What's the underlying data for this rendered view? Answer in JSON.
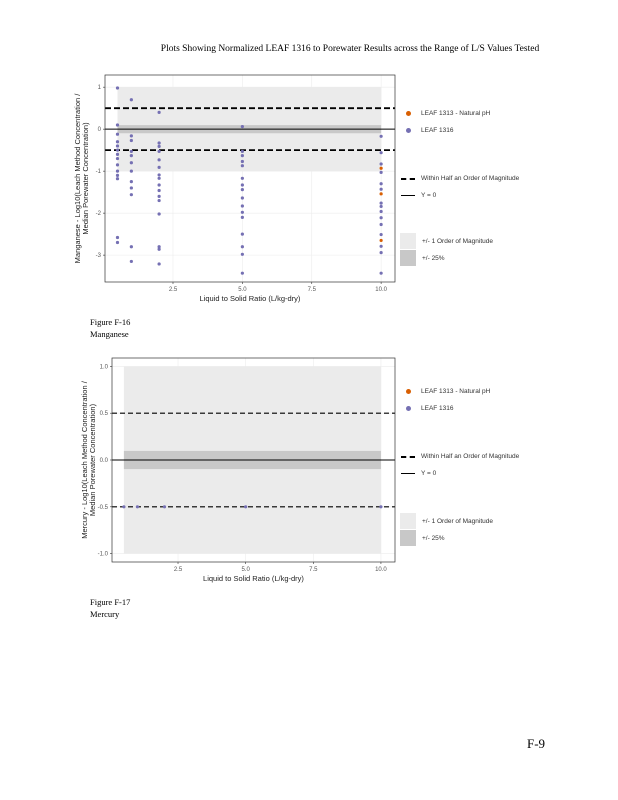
{
  "page_title": "Plots Showing Normalized LEAF 1316 to Porewater Results across the Range of L/S Values Tested",
  "page_number": "F-9",
  "legend": {
    "natural_ph": "LEAF 1313 - Natural pH",
    "leaf1316": "LEAF 1316",
    "half_order": "Within Half an Order of Magnitude",
    "y0": "Y = 0",
    "one_order": "+/- 1 Order of Magnitude",
    "pct25": "+/- 25%"
  },
  "colors": {
    "leaf1316": "#7570b3",
    "natural_ph": "#d95f02",
    "band_outer": "#ebebeb",
    "band_inner": "#c8c8c8"
  },
  "figures": [
    {
      "label": "Figure F-16",
      "caption": "Manganese"
    },
    {
      "label": "Figure F-17",
      "caption": "Mercury"
    }
  ],
  "chart_data": [
    {
      "type": "scatter",
      "xlabel": "Liquid to Solid Ratio (L/kg-dry)",
      "ylabel_line1": "Manganese - Log10(Leach Method Concentration /",
      "ylabel_line2": "Median Porewater Concentration)",
      "xlim": [
        0.05,
        10.5
      ],
      "ylim": [
        -3.64,
        1.29
      ],
      "xticks": [
        2.5,
        5.0,
        7.5,
        10.0
      ],
      "xtick_labels": [
        "2.5",
        "5.0",
        "7.5",
        "10.0"
      ],
      "yticks": [
        1,
        0,
        -1,
        -2,
        -3
      ],
      "ytick_labels": [
        "1",
        "0",
        "-1",
        "-2",
        "-3"
      ],
      "bands": {
        "outer": 1,
        "inner": 0.097,
        "x_range": [
          0.5,
          10
        ]
      },
      "dashed_lines": [
        0.5,
        -0.5
      ],
      "dashed_heavy": true,
      "series": [
        {
          "name": "LEAF 1316",
          "x": [
            0.5,
            0.5,
            0.5,
            0.5,
            0.5,
            0.5,
            0.5,
            0.5,
            0.5,
            0.5,
            0.5,
            0.5,
            0.5,
            0.5,
            1,
            1,
            1,
            1,
            1,
            1,
            1,
            1,
            1,
            1,
            1,
            1,
            2,
            2,
            2,
            2,
            2,
            2,
            2,
            2,
            2,
            2,
            2,
            2,
            2,
            2,
            2,
            2,
            5,
            5,
            5,
            5,
            5,
            5,
            5,
            5,
            5,
            5,
            5,
            5,
            5,
            5,
            5,
            5,
            10,
            10,
            10,
            10,
            10,
            10,
            10,
            10,
            10,
            10,
            10,
            10,
            10,
            10,
            10
          ],
          "y": [
            0.98,
            0.1,
            -0.12,
            -0.3,
            -0.4,
            -0.5,
            -0.6,
            -0.7,
            -0.85,
            -1.0,
            -1.1,
            -1.18,
            -2.58,
            -2.7,
            0.7,
            -0.16,
            -0.27,
            -0.53,
            -0.63,
            -0.8,
            -1.0,
            -1.25,
            -1.4,
            -1.56,
            -2.8,
            -3.15,
            0.4,
            -0.33,
            -0.41,
            -0.53,
            -0.73,
            -0.91,
            -1.09,
            -1.17,
            -1.33,
            -1.46,
            -1.6,
            -1.7,
            -2.02,
            -2.8,
            -2.86,
            -3.21,
            0.06,
            -0.53,
            -0.63,
            -0.77,
            -0.87,
            -1.17,
            -1.33,
            -1.44,
            -1.64,
            -1.83,
            -1.98,
            -2.1,
            -2.5,
            -2.8,
            -2.98,
            -3.43,
            -0.17,
            -0.56,
            -0.83,
            -1.03,
            -1.3,
            -1.43,
            -1.76,
            -1.84,
            -1.96,
            -2.11,
            -2.27,
            -2.51,
            -2.79,
            -2.94,
            -3.43
          ]
        },
        {
          "name": "LEAF 1313 - Natural pH",
          "x": [
            10,
            10,
            10
          ],
          "y": [
            -0.93,
            -1.54,
            -2.65
          ]
        }
      ]
    },
    {
      "type": "scatter",
      "xlabel": "Liquid to Solid Ratio (L/kg-dry)",
      "ylabel_line1": "Mercury - Log10(Leach Method Concentration /",
      "ylabel_line2": "Median Porewater Concentration)",
      "xlim": [
        0.06,
        10.52
      ],
      "ylim": [
        -1.09,
        1.09
      ],
      "xticks": [
        2.5,
        5.0,
        7.5,
        10.0
      ],
      "xtick_labels": [
        "2.5",
        "5.0",
        "7.5",
        "10.0"
      ],
      "yticks": [
        1,
        0.5,
        0,
        -0.5,
        -1
      ],
      "ytick_labels": [
        "1.0",
        "0.5",
        "0.0",
        "-0.5",
        "-1.0"
      ],
      "bands": {
        "outer": 1,
        "inner": 0.097,
        "x_range": [
          0.5,
          10
        ]
      },
      "dashed_lines": [
        0.5,
        -0.5
      ],
      "dashed_heavy": false,
      "series": [
        {
          "name": "LEAF 1316",
          "x": [
            0.5,
            1,
            2,
            5,
            10
          ],
          "y": [
            -0.5,
            -0.5,
            -0.5,
            -0.5,
            -0.5
          ]
        },
        {
          "name": "LEAF 1313 - Natural pH",
          "x": [],
          "y": []
        }
      ]
    }
  ]
}
